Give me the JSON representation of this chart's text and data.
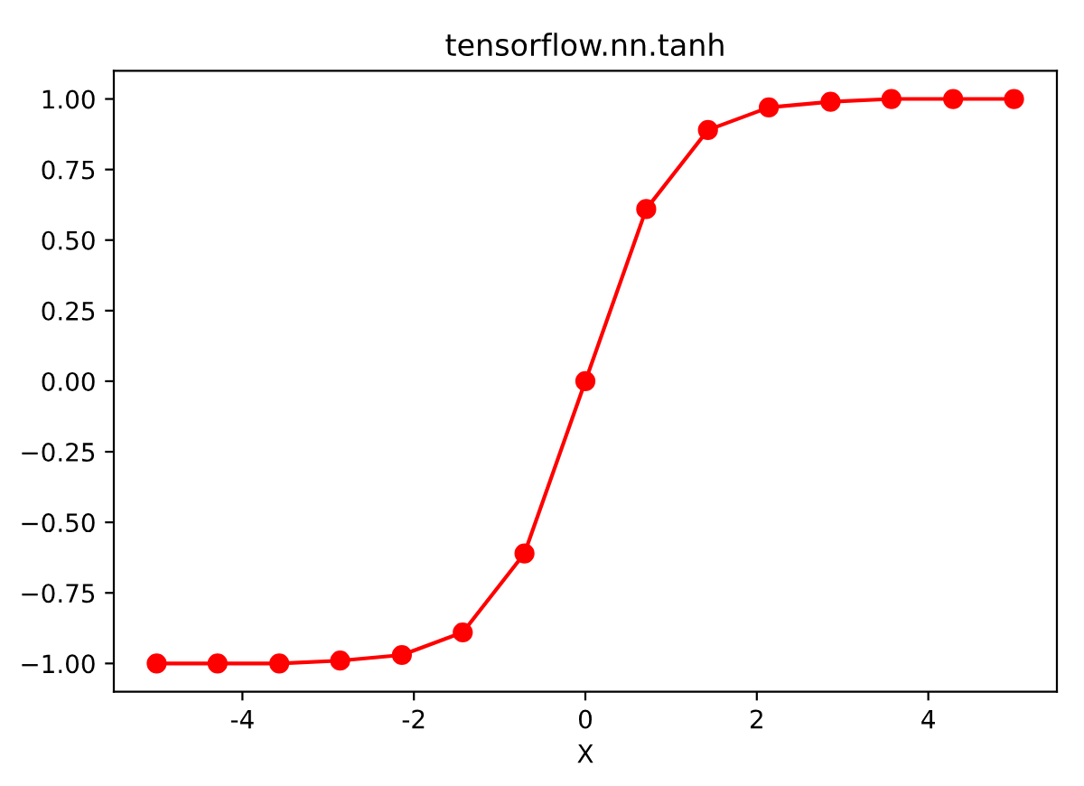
{
  "chart_data": {
    "type": "line",
    "title": "tensorflow.nn.tanh",
    "xlabel": "X",
    "x": [
      -5,
      -4.29,
      -3.57,
      -2.86,
      -2.14,
      -1.43,
      -0.71,
      0,
      0.71,
      1.43,
      2.14,
      2.86,
      3.57,
      4.29,
      5
    ],
    "series": [
      {
        "color": "#ff0000",
        "values": [
          -1.0,
          -1.0,
          -1.0,
          -0.99,
          -0.97,
          -0.89,
          -0.61,
          0.0,
          0.61,
          0.89,
          0.97,
          0.99,
          1.0,
          1.0,
          1.0
        ]
      }
    ],
    "xlim": [
      -5.5,
      5.5
    ],
    "xticks": [
      -4,
      -2,
      0,
      2,
      4
    ],
    "ylim": [
      -1.1,
      1.1
    ],
    "yticks": [
      {
        "value": -1,
        "label": "−1.00"
      },
      {
        "value": -0.75,
        "label": "−0.75"
      },
      {
        "value": -0.5,
        "label": "−0.50"
      },
      {
        "value": -0.25,
        "label": "−0.25"
      },
      {
        "value": 0,
        "label": "0.00"
      },
      {
        "value": 0.25,
        "label": "0.25"
      },
      {
        "value": 0.5,
        "label": "0.50"
      },
      {
        "value": 0.75,
        "label": "0.75"
      },
      {
        "value": 1,
        "label": "1.00"
      }
    ],
    "marker": "circle",
    "line_style": "solid",
    "grid": false,
    "legend": false
  }
}
